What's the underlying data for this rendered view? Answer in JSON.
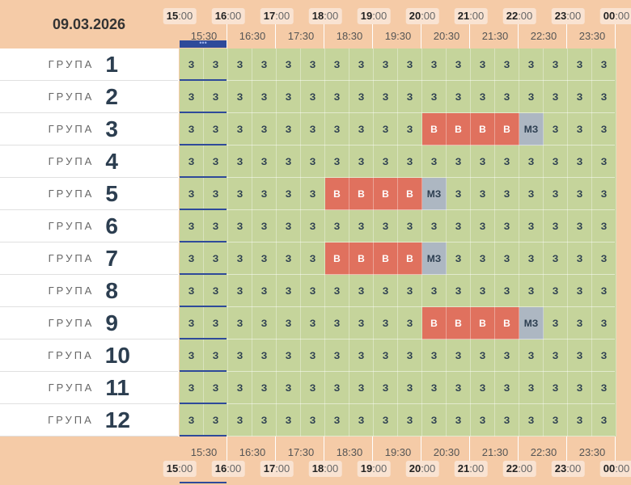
{
  "date": "09.03.2026",
  "group_word": "ГРУПА",
  "hour_ticks": [
    "15",
    "16",
    "17",
    "18",
    "19",
    "20",
    "21",
    "22",
    "23",
    "00"
  ],
  "minute_suffix": ":00",
  "half_hours": [
    "15:30",
    "16:30",
    "17:30",
    "18:30",
    "19:30",
    "20:30",
    "21:30",
    "22:30",
    "23:30"
  ],
  "grip_glyph": "•••",
  "rows": [
    {
      "num": "1",
      "cells": [
        "З",
        "З",
        "З",
        "З",
        "З",
        "З",
        "З",
        "З",
        "З",
        "З",
        "З",
        "З",
        "З",
        "З",
        "З",
        "З",
        "З",
        "З"
      ]
    },
    {
      "num": "2",
      "cells": [
        "З",
        "З",
        "З",
        "З",
        "З",
        "З",
        "З",
        "З",
        "З",
        "З",
        "З",
        "З",
        "З",
        "З",
        "З",
        "З",
        "З",
        "З"
      ]
    },
    {
      "num": "3",
      "cells": [
        "З",
        "З",
        "З",
        "З",
        "З",
        "З",
        "З",
        "З",
        "З",
        "З",
        "В",
        "В",
        "В",
        "В",
        "МЗ",
        "З",
        "З",
        "З"
      ]
    },
    {
      "num": "4",
      "cells": [
        "З",
        "З",
        "З",
        "З",
        "З",
        "З",
        "З",
        "З",
        "З",
        "З",
        "З",
        "З",
        "З",
        "З",
        "З",
        "З",
        "З",
        "З"
      ]
    },
    {
      "num": "5",
      "cells": [
        "З",
        "З",
        "З",
        "З",
        "З",
        "З",
        "В",
        "В",
        "В",
        "В",
        "МЗ",
        "З",
        "З",
        "З",
        "З",
        "З",
        "З",
        "З"
      ]
    },
    {
      "num": "6",
      "cells": [
        "З",
        "З",
        "З",
        "З",
        "З",
        "З",
        "З",
        "З",
        "З",
        "З",
        "З",
        "З",
        "З",
        "З",
        "З",
        "З",
        "З",
        "З"
      ]
    },
    {
      "num": "7",
      "cells": [
        "З",
        "З",
        "З",
        "З",
        "З",
        "З",
        "В",
        "В",
        "В",
        "В",
        "МЗ",
        "З",
        "З",
        "З",
        "З",
        "З",
        "З",
        "З"
      ]
    },
    {
      "num": "8",
      "cells": [
        "З",
        "З",
        "З",
        "З",
        "З",
        "З",
        "З",
        "З",
        "З",
        "З",
        "З",
        "З",
        "З",
        "З",
        "З",
        "З",
        "З",
        "З"
      ]
    },
    {
      "num": "9",
      "cells": [
        "З",
        "З",
        "З",
        "З",
        "З",
        "З",
        "З",
        "З",
        "З",
        "З",
        "В",
        "В",
        "В",
        "В",
        "МЗ",
        "З",
        "З",
        "З"
      ]
    },
    {
      "num": "10",
      "cells": [
        "З",
        "З",
        "З",
        "З",
        "З",
        "З",
        "З",
        "З",
        "З",
        "З",
        "З",
        "З",
        "З",
        "З",
        "З",
        "З",
        "З",
        "З"
      ]
    },
    {
      "num": "11",
      "cells": [
        "З",
        "З",
        "З",
        "З",
        "З",
        "З",
        "З",
        "З",
        "З",
        "З",
        "З",
        "З",
        "З",
        "З",
        "З",
        "З",
        "З",
        "З"
      ]
    },
    {
      "num": "12",
      "cells": [
        "З",
        "З",
        "З",
        "З",
        "З",
        "З",
        "З",
        "З",
        "З",
        "З",
        "З",
        "З",
        "З",
        "З",
        "З",
        "З",
        "З",
        "З"
      ]
    }
  ],
  "colors": {
    "free": "#c5d49b",
    "busy": "#e0715e",
    "partial": "#adb7c2",
    "accent": "#2e4a9a",
    "header": "#f5cba7"
  }
}
